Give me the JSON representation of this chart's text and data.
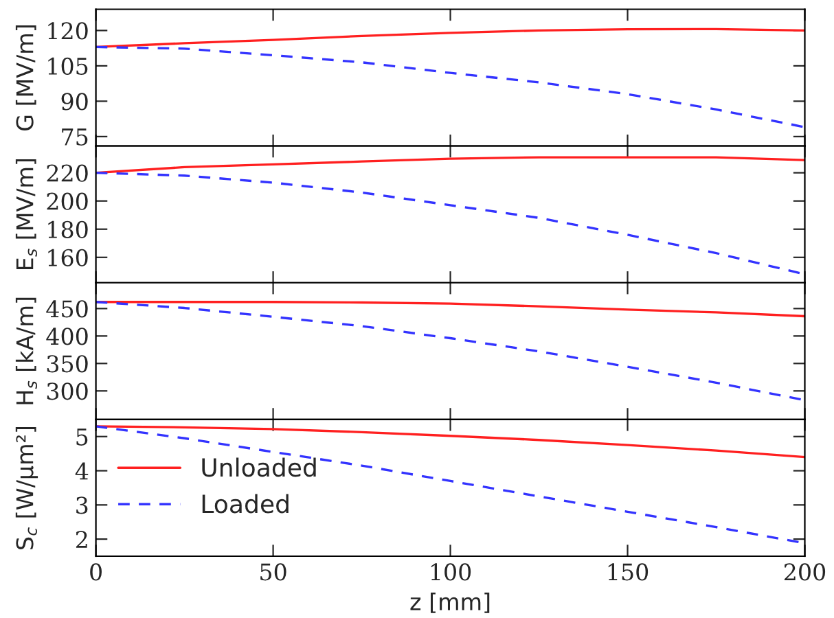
{
  "chart_data": [
    {
      "type": "line",
      "ylabel": "G [MV/m]",
      "x": [
        0,
        25,
        50,
        75,
        100,
        125,
        150,
        175,
        200
      ],
      "xlim": [
        0,
        200
      ],
      "xticks": [
        0,
        50,
        100,
        150,
        200
      ],
      "ylim": [
        71,
        129
      ],
      "yticks": [
        75,
        90,
        105,
        120
      ],
      "tick_labels": "y",
      "grid": false,
      "legend": false,
      "series": [
        {
          "color": "#ff2020",
          "line_style": "solid",
          "values": [
            113,
            114.6,
            116,
            117.7,
            119,
            120,
            120.5,
            120.6,
            120
          ]
        },
        {
          "color": "#3333ff",
          "line_style": "dashed",
          "values": [
            113,
            112.3,
            109.5,
            106.5,
            102,
            98,
            93,
            86.5,
            79
          ]
        }
      ]
    },
    {
      "type": "line",
      "ylabel": "E$_{s}$ [MV/m]",
      "x": [
        0,
        25,
        50,
        75,
        100,
        125,
        150,
        175,
        200
      ],
      "xlim": [
        0,
        200
      ],
      "xticks": [
        0,
        50,
        100,
        150,
        200
      ],
      "ylim": [
        142,
        239
      ],
      "yticks": [
        160,
        180,
        200,
        220
      ],
      "tick_labels": "y",
      "grid": false,
      "legend": false,
      "series": [
        {
          "color": "#ff2020",
          "line_style": "solid",
          "values": [
            220,
            224,
            226,
            228,
            230,
            231,
            231,
            231,
            229
          ]
        },
        {
          "color": "#3333ff",
          "line_style": "dashed",
          "values": [
            220,
            218,
            213,
            206,
            197,
            188,
            176,
            163,
            148
          ]
        }
      ]
    },
    {
      "type": "line",
      "ylabel": "H$_{s}$ [kA/m]",
      "x": [
        0,
        25,
        50,
        75,
        100,
        125,
        150,
        175,
        200
      ],
      "xlim": [
        0,
        200
      ],
      "xticks": [
        0,
        50,
        100,
        150,
        200
      ],
      "ylim": [
        248,
        497
      ],
      "yticks": [
        300,
        350,
        400,
        450
      ],
      "tick_labels": "y",
      "grid": false,
      "legend": false,
      "series": [
        {
          "color": "#ff2020",
          "line_style": "solid",
          "values": [
            462,
            462,
            462,
            461,
            459,
            454,
            448,
            443,
            436
          ]
        },
        {
          "color": "#3333ff",
          "line_style": "dashed",
          "values": [
            462,
            451,
            435,
            418,
            396,
            372,
            344,
            315,
            283
          ]
        }
      ]
    },
    {
      "type": "line",
      "ylabel": "S$_{c}$ [W/μm²]",
      "xlabel": "z [mm]",
      "x": [
        0,
        25,
        50,
        75,
        100,
        125,
        150,
        175,
        200
      ],
      "xlim": [
        0,
        200
      ],
      "xticks": [
        0,
        50,
        100,
        150,
        200
      ],
      "ylim": [
        1.5,
        5.5
      ],
      "yticks": [
        2,
        3,
        4,
        5
      ],
      "grid": false,
      "legend": "left",
      "series": [
        {
          "name": "Unloaded",
          "color": "#ff2020",
          "line_style": "solid",
          "values": [
            5.3,
            5.27,
            5.22,
            5.13,
            5.02,
            4.9,
            4.75,
            4.59,
            4.4
          ]
        },
        {
          "name": "Loaded",
          "color": "#3333ff",
          "line_style": "dashed",
          "values": [
            5.3,
            4.95,
            4.55,
            4.15,
            3.7,
            3.25,
            2.8,
            2.35,
            1.88
          ]
        }
      ]
    }
  ]
}
